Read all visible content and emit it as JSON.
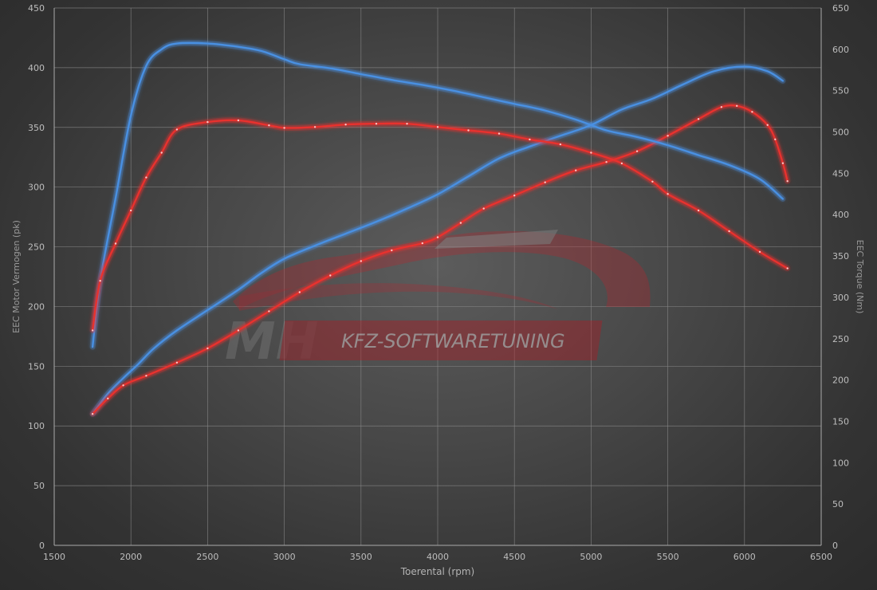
{
  "chart_data": {
    "type": "line",
    "xlabel": "Toerental (rpm)",
    "ylabel_left": "EEC Motor Vermogen (pk)",
    "ylabel_right": "EEC Torque (Nm)",
    "xlim": [
      1500,
      6500
    ],
    "ylim_left": [
      0,
      450
    ],
    "ylim_right": [
      0,
      650
    ],
    "x_ticks": [
      "1500",
      "2000",
      "2500",
      "3000",
      "3500",
      "4000",
      "4500",
      "5000",
      "5500",
      "6000",
      "6500"
    ],
    "y_ticks_left": [
      "0",
      "50",
      "100",
      "150",
      "200",
      "250",
      "300",
      "350",
      "400",
      "450"
    ],
    "y_ticks_right": [
      "0",
      "50",
      "100",
      "150",
      "200",
      "250",
      "300",
      "350",
      "400",
      "450",
      "500",
      "550",
      "600",
      "650"
    ],
    "grid": true,
    "series": [
      {
        "color": "#4a90e2",
        "axis": "left",
        "x": [
          1750,
          1850,
          1950,
          2050,
          2150,
          2300,
          2500,
          2700,
          2850,
          3000,
          3200,
          3400,
          3600,
          3800,
          4000,
          4200,
          4400,
          4600,
          4800,
          5000,
          5200,
          5400,
          5600,
          5800,
          6000,
          6150,
          6250
        ],
        "y": [
          110,
          127,
          140,
          152,
          165,
          180,
          197,
          214,
          228,
          240,
          251,
          261,
          271,
          282,
          294,
          309,
          324,
          334,
          343,
          352,
          365,
          374,
          386,
          397,
          401,
          397,
          389
        ]
      },
      {
        "color": "#e8302e",
        "axis": "left",
        "x": [
          1750,
          1850,
          1950,
          2100,
          2300,
          2500,
          2700,
          2900,
          3100,
          3300,
          3500,
          3700,
          3900,
          4000,
          4150,
          4300,
          4500,
          4700,
          4900,
          5100,
          5300,
          5500,
          5700,
          5850,
          5950,
          6050,
          6150,
          6200,
          6250,
          6280
        ],
        "y": [
          110,
          123,
          134,
          142,
          153,
          165,
          180,
          196,
          212,
          226,
          238,
          247,
          253,
          258,
          270,
          282,
          293,
          304,
          314,
          321,
          330,
          343,
          357,
          367,
          368,
          363,
          352,
          340,
          320,
          305
        ]
      },
      {
        "color": "#4a90e2",
        "axis": "right",
        "x": [
          1750,
          1800,
          1900,
          2000,
          2100,
          2200,
          2300,
          2500,
          2700,
          2850,
          3000,
          3100,
          3300,
          3500,
          3700,
          3900,
          4100,
          4300,
          4500,
          4700,
          4900,
          5100,
          5300,
          5500,
          5700,
          5900,
          6100,
          6250
        ],
        "y": [
          240,
          320,
          420,
          520,
          580,
          600,
          607,
          607,
          603,
          598,
          588,
          582,
          577,
          570,
          563,
          557,
          550,
          542,
          534,
          526,
          515,
          502,
          494,
          484,
          472,
          460,
          443,
          419
        ]
      },
      {
        "color": "#e8302e",
        "axis": "right",
        "x": [
          1750,
          1800,
          1900,
          2000,
          2100,
          2200,
          2300,
          2500,
          2700,
          2900,
          3000,
          3200,
          3400,
          3600,
          3800,
          4000,
          4200,
          4400,
          4600,
          4800,
          5000,
          5200,
          5400,
          5500,
          5700,
          5900,
          6100,
          6280
        ],
        "y": [
          260,
          320,
          365,
          405,
          445,
          475,
          503,
          512,
          514,
          508,
          505,
          506,
          509,
          510,
          510,
          506,
          502,
          498,
          491,
          485,
          475,
          462,
          440,
          425,
          405,
          380,
          355,
          335
        ]
      }
    ]
  },
  "watermark": {
    "logo_letters": "MH",
    "tagline": "KFZ-SOFTWARETUNING",
    "colors": {
      "car": "#c0202a",
      "banner": "#b5161f"
    }
  },
  "colors": {
    "grid": "#8a8a8a",
    "axis": "#aaaaaa",
    "power_stock": "#4a90e2",
    "tuned": "#e8302e"
  }
}
